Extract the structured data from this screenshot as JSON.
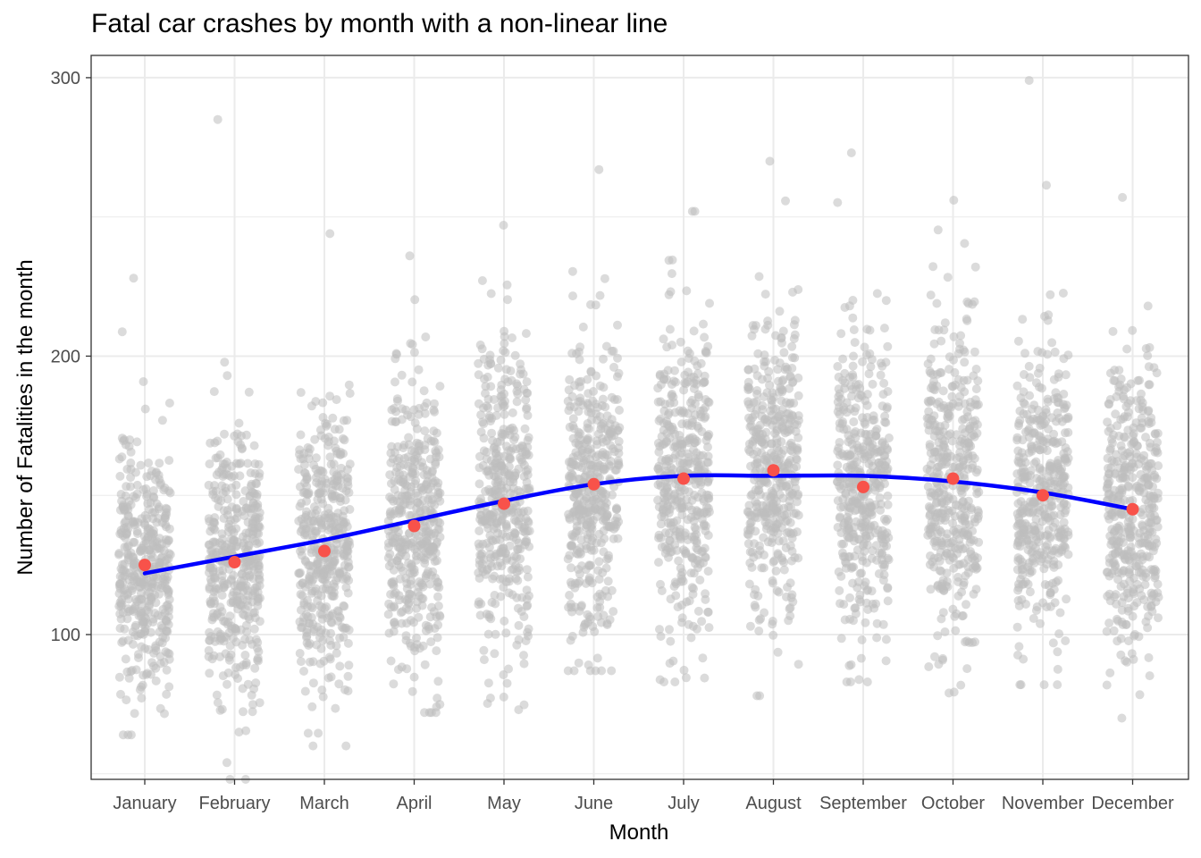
{
  "chart_data": {
    "type": "scatter",
    "title": "Fatal car crashes by month with a non-linear line",
    "xlabel": "Month",
    "ylabel": "Number of Fatalities in the month",
    "categories": [
      "January",
      "February",
      "March",
      "April",
      "May",
      "June",
      "July",
      "August",
      "September",
      "October",
      "November",
      "December"
    ],
    "ylim": [
      48,
      308
    ],
    "yticks": [
      100,
      200,
      300
    ],
    "grid": true,
    "legend": "none",
    "point_cloud": {
      "name": "",
      "color": "#bebebe",
      "opacity": 0.55,
      "groups": [
        {
          "month": "January",
          "center": 125,
          "spread": 22,
          "min": 64,
          "max": 228
        },
        {
          "month": "February",
          "center": 126,
          "spread": 24,
          "min": 48,
          "max": 285
        },
        {
          "month": "March",
          "center": 130,
          "spread": 25,
          "min": 60,
          "max": 244
        },
        {
          "month": "April",
          "center": 139,
          "spread": 25,
          "min": 72,
          "max": 236
        },
        {
          "month": "May",
          "center": 147,
          "spread": 27,
          "min": 73,
          "max": 247
        },
        {
          "month": "June",
          "center": 154,
          "spread": 27,
          "min": 87,
          "max": 267
        },
        {
          "month": "July",
          "center": 156,
          "spread": 27,
          "min": 83,
          "max": 252
        },
        {
          "month": "August",
          "center": 159,
          "spread": 27,
          "min": 78,
          "max": 270
        },
        {
          "month": "September",
          "center": 153,
          "spread": 27,
          "min": 83,
          "max": 273
        },
        {
          "month": "October",
          "center": 156,
          "spread": 28,
          "min": 79,
          "max": 256
        },
        {
          "month": "November",
          "center": 150,
          "spread": 26,
          "min": 82,
          "max": 299
        },
        {
          "month": "December",
          "center": 145,
          "spread": 26,
          "min": 70,
          "max": 257
        }
      ]
    },
    "series": [
      {
        "name": "",
        "type": "point",
        "color": "#f8524a",
        "values": [
          125,
          126,
          130,
          139,
          147,
          154,
          156,
          159,
          153,
          156,
          150,
          145
        ]
      },
      {
        "name": "",
        "type": "smooth",
        "color": "#0000ff",
        "values": [
          122,
          128,
          134,
          141,
          148,
          154,
          157,
          157,
          157,
          155,
          151,
          145
        ]
      }
    ]
  }
}
